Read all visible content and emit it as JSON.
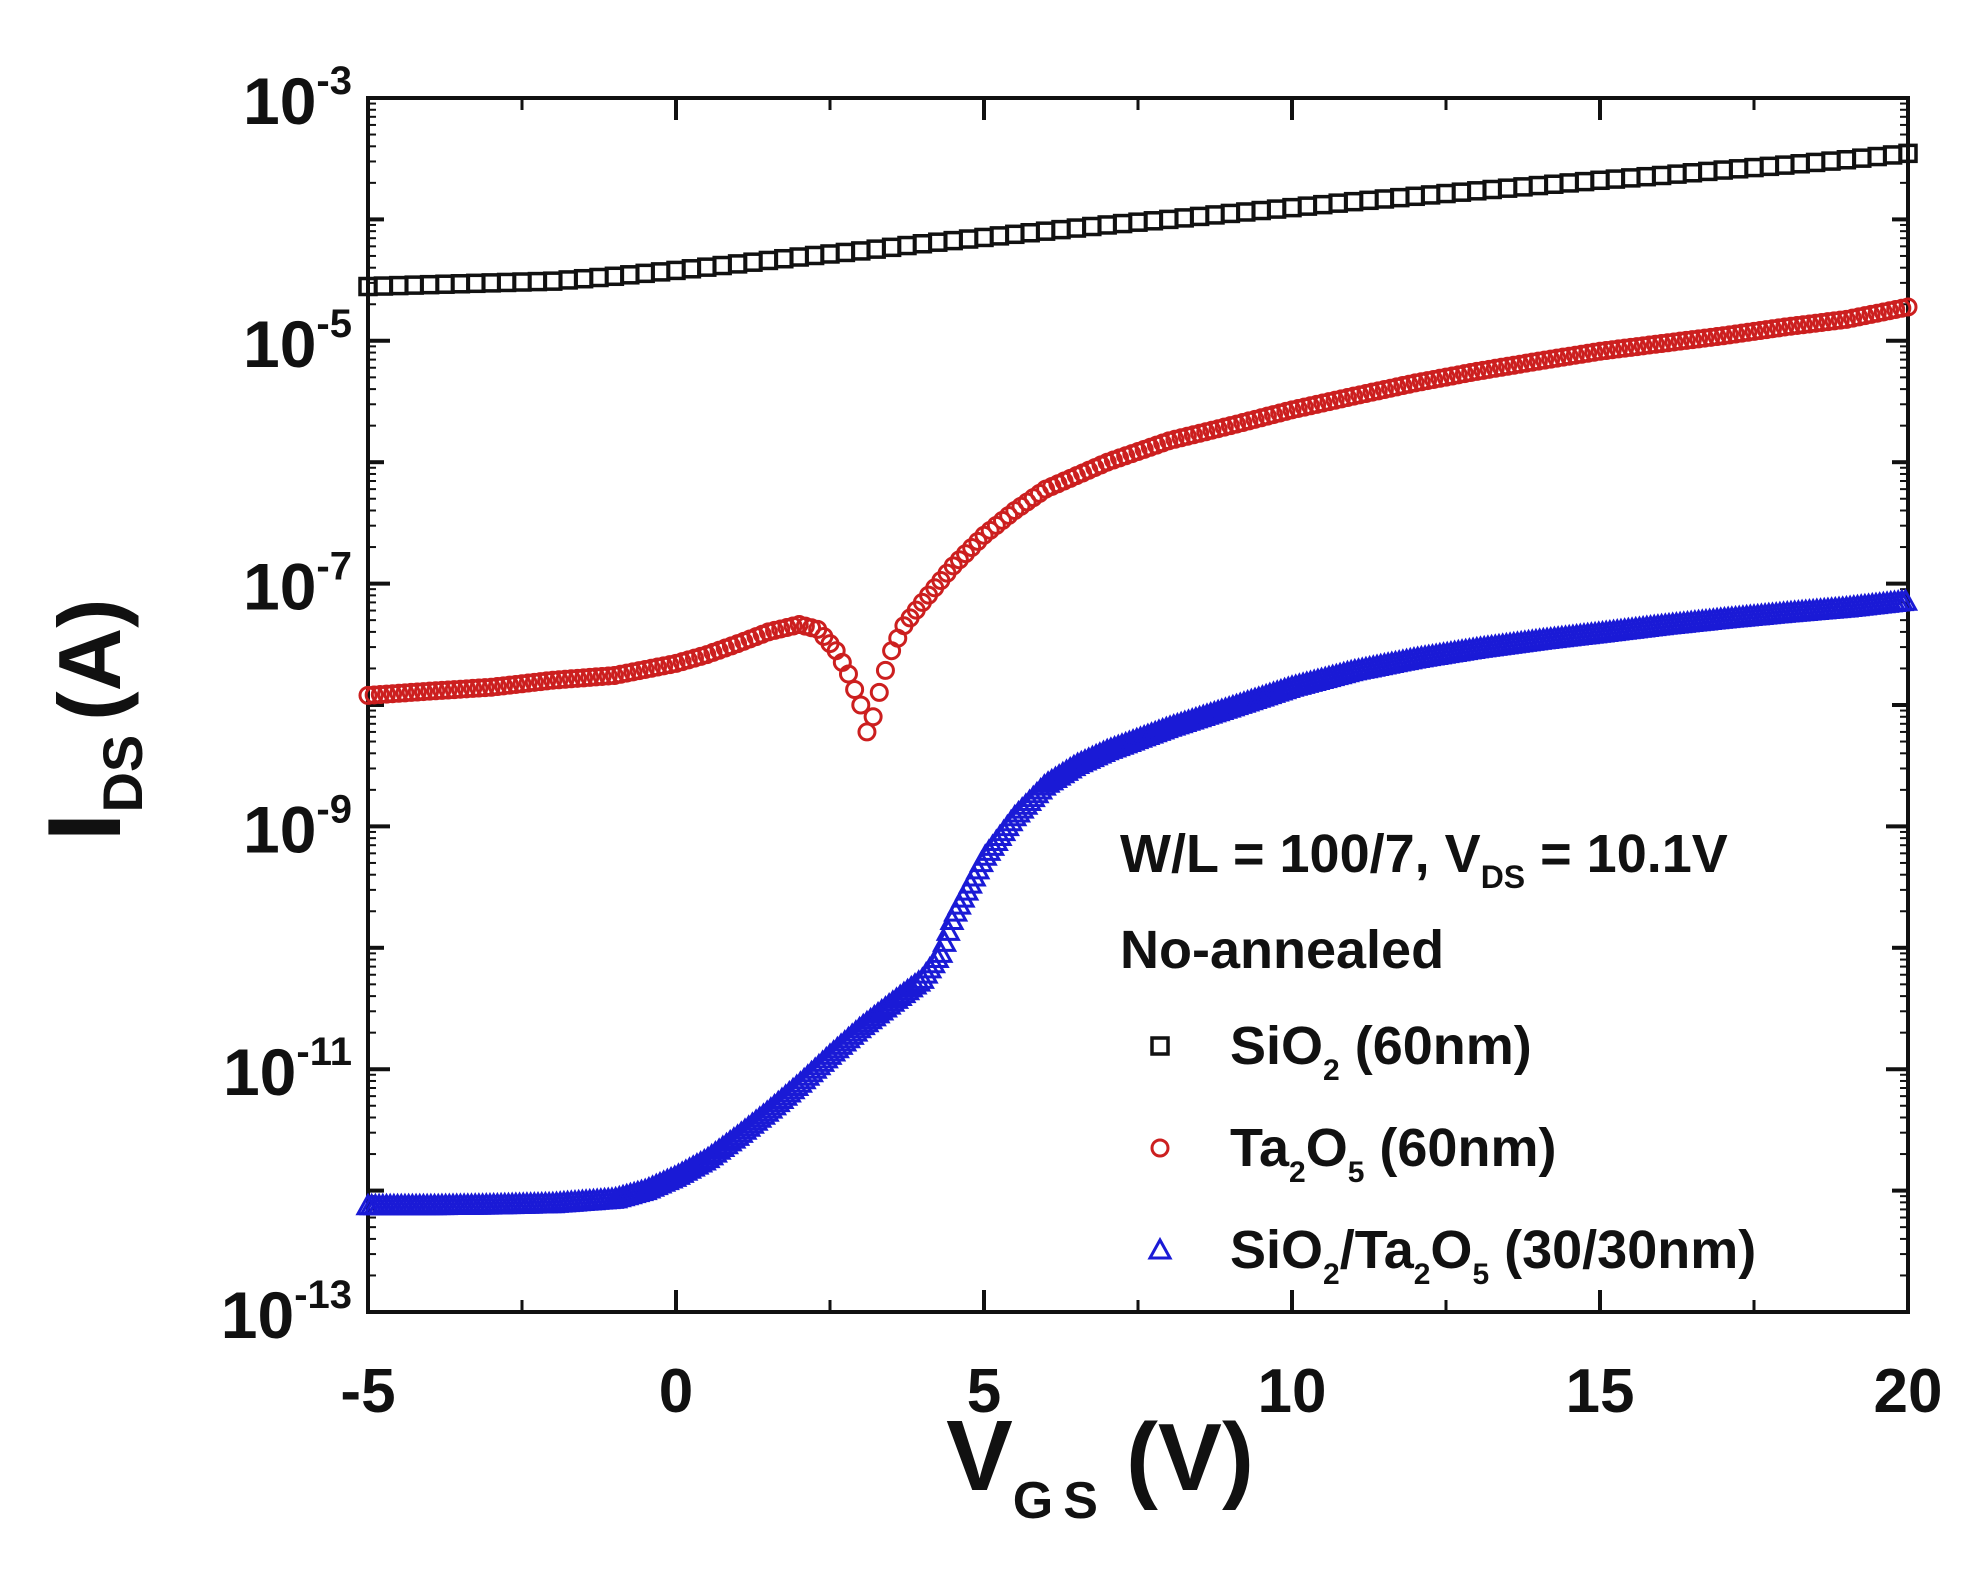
{
  "chart_data": {
    "type": "scatter",
    "title": "",
    "xlabel": {
      "main": "V",
      "sub": "GS",
      "unit": "(V)"
    },
    "ylabel": {
      "main": "I",
      "sub": "DS",
      "unit": "(A)"
    },
    "xlim": [
      -5,
      20
    ],
    "ylim_log10": [
      -13,
      -3
    ],
    "yscale": "log",
    "x_ticks": [
      -5,
      0,
      5,
      10,
      15,
      20
    ],
    "x_tick_labels": [
      "-5",
      "0",
      "5",
      "10",
      "15",
      "20"
    ],
    "y_ticks_exp": [
      -13,
      -11,
      -9,
      -7,
      -5,
      -3
    ],
    "y_tick_labels": [
      {
        "base": "10",
        "exp": "-13"
      },
      {
        "base": "10",
        "exp": "-11"
      },
      {
        "base": "10",
        "exp": "-9"
      },
      {
        "base": "10",
        "exp": "-7"
      },
      {
        "base": "10",
        "exp": "-5"
      },
      {
        "base": "10",
        "exp": "-3"
      }
    ],
    "annotation": {
      "condition": {
        "prefix": "W/L = 100/7, V",
        "sub": "DS",
        "suffix": " = 10.1V"
      },
      "subtitle": "No-annealed"
    },
    "legend_position": "lower-right",
    "series": [
      {
        "legend": [
          {
            "t": "SiO"
          },
          {
            "t": "2",
            "sub": true
          },
          {
            "t": " (60nm)"
          }
        ],
        "marker": "square",
        "color": "#111111",
        "x": [
          -5,
          -4,
          -3,
          -2,
          -1,
          0,
          1,
          2,
          3,
          4,
          5,
          6,
          7,
          8,
          9,
          10,
          11,
          12,
          13,
          14,
          15,
          16,
          17,
          18,
          19,
          20
        ],
        "y": [
          2.8e-05,
          2.9e-05,
          3e-05,
          3.1e-05,
          3.4e-05,
          3.8e-05,
          4.3e-05,
          4.9e-05,
          5.5e-05,
          6.3e-05,
          7.1e-05,
          8e-05,
          9e-05,
          0.0001,
          0.000112,
          0.000125,
          0.00014,
          0.000155,
          0.000172,
          0.00019,
          0.00021,
          0.00023,
          0.000255,
          0.00028,
          0.00031,
          0.00035
        ]
      },
      {
        "legend": [
          {
            "t": "Ta"
          },
          {
            "t": "2",
            "sub": true
          },
          {
            "t": "O"
          },
          {
            "t": "5",
            "sub": true
          },
          {
            "t": " (60nm)"
          }
        ],
        "marker": "circle",
        "color": "#cc1f1f",
        "x": [
          -5,
          -4,
          -3,
          -2,
          -1,
          0,
          0.5,
          1,
          1.5,
          2,
          2.3,
          2.6,
          2.8,
          3.0,
          3.1,
          3.2,
          3.35,
          3.5,
          3.7,
          4,
          4.5,
          5,
          5.5,
          6,
          7,
          8,
          9,
          10,
          11,
          12,
          13,
          14,
          15,
          16,
          17,
          18,
          19,
          20
        ],
        "y": [
          1.2e-08,
          1.3e-08,
          1.4e-08,
          1.6e-08,
          1.75e-08,
          2.2e-08,
          2.6e-08,
          3.2e-08,
          4e-08,
          4.6e-08,
          4.2e-08,
          2.8e-08,
          1.8e-08,
          1e-08,
          6e-09,
          8e-09,
          1.6e-08,
          2.8e-08,
          4.5e-08,
          7e-08,
          1.4e-07,
          2.5e-07,
          4e-07,
          6e-07,
          1e-06,
          1.5e-06,
          2e-06,
          2.7e-06,
          3.5e-06,
          4.5e-06,
          5.6e-06,
          6.8e-06,
          8.2e-06,
          9.5e-06,
          1.1e-05,
          1.3e-05,
          1.5e-05,
          1.9e-05
        ]
      },
      {
        "legend": [
          {
            "t": "SiO"
          },
          {
            "t": "2",
            "sub": true
          },
          {
            "t": "/Ta"
          },
          {
            "t": "2",
            "sub": true
          },
          {
            "t": "O"
          },
          {
            "t": "5",
            "sub": true
          },
          {
            "t": " (30/30nm)"
          }
        ],
        "marker": "triangle",
        "color": "#1a1ad6",
        "x": [
          -5,
          -4,
          -3,
          -2,
          -1,
          -0.5,
          0,
          0.5,
          1,
          1.5,
          2,
          2.5,
          3,
          3.5,
          4,
          4.3,
          4.5,
          4.8,
          5,
          5.5,
          6,
          6.5,
          7,
          8,
          9,
          10,
          11,
          12,
          13,
          14,
          15,
          16,
          17,
          18,
          19,
          20
        ],
        "y": [
          7.5e-13,
          7.5e-13,
          7.6e-13,
          7.8e-13,
          8.5e-13,
          1e-12,
          1.3e-12,
          1.8e-12,
          2.8e-12,
          4.5e-12,
          7.5e-12,
          1.3e-11,
          2.2e-11,
          3.5e-11,
          5.5e-11,
          9e-11,
          1.8e-10,
          3.5e-10,
          5.5e-10,
          1.2e-09,
          2.2e-09,
          3.2e-09,
          4.2e-09,
          6.5e-09,
          9.5e-09,
          1.4e-08,
          1.9e-08,
          2.4e-08,
          2.9e-08,
          3.4e-08,
          3.9e-08,
          4.5e-08,
          5.1e-08,
          5.7e-08,
          6.3e-08,
          7.2e-08
        ]
      }
    ]
  }
}
